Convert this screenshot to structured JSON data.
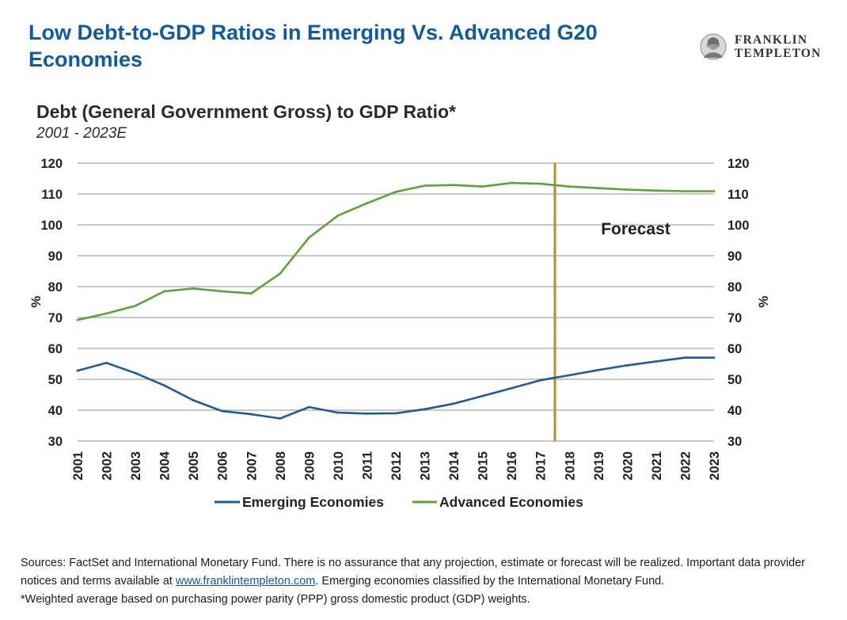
{
  "header": {
    "title": "Low Debt-to-GDP Ratios in Emerging Vs. Advanced G20 Economies",
    "logo_line1": "FRANKLIN",
    "logo_line2": "TEMPLETON",
    "logo_icon": "benjamin-franklin-portrait-icon"
  },
  "chart_data": {
    "type": "line",
    "title": "Debt (General Government Gross) to GDP Ratio*",
    "subtitle": "2001 - 2023E",
    "ylabel": "%",
    "y2label": "%",
    "ylim": [
      30,
      120
    ],
    "yticks": [
      30,
      40,
      50,
      60,
      70,
      80,
      90,
      100,
      110,
      120
    ],
    "grid": true,
    "legend_position": "bottom",
    "x": [
      "2001",
      "2002",
      "2003",
      "2004",
      "2005",
      "2006",
      "2007",
      "2008",
      "2009",
      "2010",
      "2011",
      "2012",
      "2013",
      "2014",
      "2015",
      "2016",
      "2017",
      "2018",
      "2019",
      "2020",
      "2021",
      "2022",
      "2023"
    ],
    "series": [
      {
        "name": "Emerging Economies",
        "color": "#1c5c9c",
        "values": [
          52.8,
          55.3,
          52.0,
          48.0,
          43.2,
          39.7,
          38.7,
          37.3,
          41.0,
          39.2,
          38.9,
          39.0,
          40.3,
          42.1,
          44.6,
          47.1,
          49.7,
          51.3,
          53.0,
          54.5,
          55.8,
          57.0,
          57.0
        ]
      },
      {
        "name": "Advanced Economies",
        "color": "#5ca237",
        "values": [
          69.2,
          71.3,
          73.8,
          78.5,
          79.4,
          78.5,
          77.8,
          84.2,
          95.9,
          103.0,
          107.0,
          110.7,
          112.7,
          112.9,
          112.4,
          113.6,
          113.3,
          112.4,
          111.9,
          111.4,
          111.1,
          110.9,
          110.9
        ]
      }
    ],
    "forecast_divider": {
      "after_index": 16.5,
      "label": "Forecast",
      "color": "#b8901a"
    }
  },
  "footer": {
    "sources_pre": "Sources: FactSet and International Monetary Fund. There is no assurance that any projection, estimate or forecast will be realized. Important data provider notices and terms available at ",
    "link_text": "www.franklintempleton.com",
    "sources_post": ". Emerging economies classified by the International Monetary Fund.",
    "note": "*Weighted average based on purchasing power parity (PPP) gross domestic product (GDP) weights."
  }
}
